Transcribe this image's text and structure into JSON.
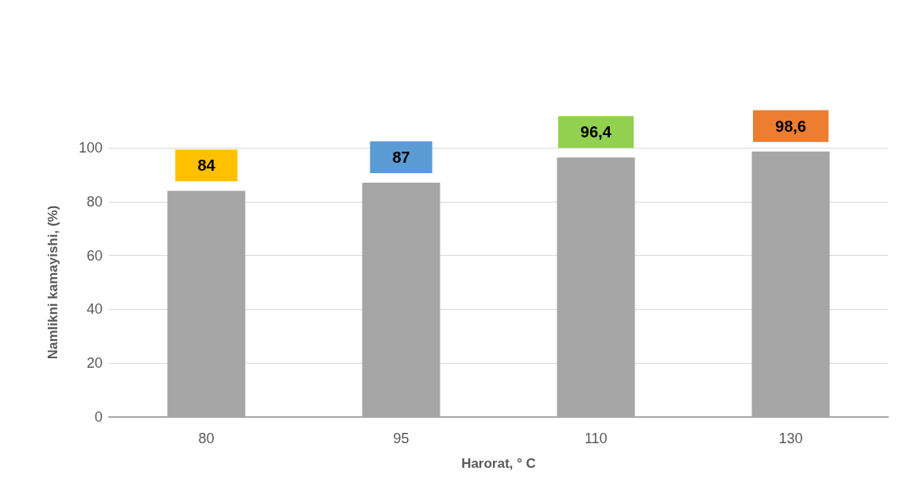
{
  "chart_data": {
    "type": "bar",
    "xlabel": "Harorat, ° C",
    "ylabel": "Namlikni kamayishi, (%)",
    "categories": [
      "80",
      "95",
      "110",
      "130"
    ],
    "series": [
      {
        "color": "#a6a6a6",
        "values": [
          84,
          87,
          96.4,
          98.6
        ],
        "value_labels": [
          "84",
          "87",
          "96,4",
          "98,6"
        ]
      }
    ],
    "ylim": [
      0,
      100
    ],
    "yticks": [
      0,
      20,
      40,
      60,
      80,
      100
    ],
    "grid": "y"
  }
}
